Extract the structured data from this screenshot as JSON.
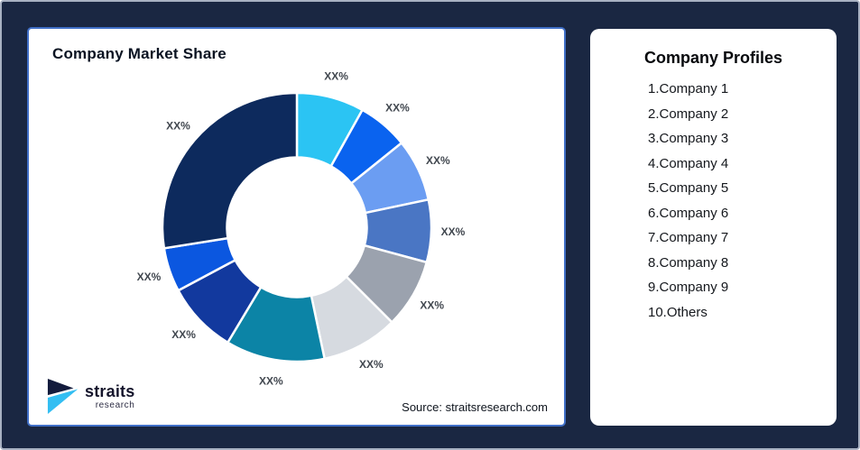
{
  "page": {
    "background_color": "#1A2742",
    "outer_border_color": "#A8B1C2"
  },
  "chart_panel": {
    "title": "Company Market Share",
    "source_text": "Source: straitsresearch.com",
    "border_color": "#4170C8",
    "logo": {
      "name": "straits",
      "sub": "research",
      "mark_top_color": "#131B3C",
      "mark_bottom_color": "#33BEF2"
    }
  },
  "profiles_panel": {
    "title": "Company Profiles",
    "items": [
      "1.Company 1",
      "2.Company 2",
      "3.Company 3",
      "4.Company 4",
      "5.Company 5",
      "6.Company 6",
      "7.Company 7",
      "8.Company 8",
      "9.Company 9",
      "10.Others"
    ]
  },
  "chart_data": {
    "type": "pie",
    "donut": true,
    "title": "Company Market Share",
    "legend_position": "none",
    "start_angle_deg": 0,
    "direction": "clockwise",
    "inner_radius_ratio": 0.52,
    "series_names": [
      "Company 1",
      "Company 2",
      "Company 3",
      "Company 4",
      "Company 5",
      "Company 6",
      "Company 7",
      "Company 8",
      "Company 9",
      "Others"
    ],
    "values": [
      8.1,
      6.1,
      7.5,
      7.5,
      8.3,
      9.2,
      11.9,
      8.6,
      5.3,
      27.5
    ],
    "labels": [
      "XX%",
      "XX%",
      "XX%",
      "XX%",
      "XX%",
      "XX%",
      "XX%",
      "XX%",
      "XX%",
      "XX%"
    ],
    "colors": [
      "#2BC4F3",
      "#0A63EF",
      "#6B9DF2",
      "#4A76C4",
      "#9BA2AE",
      "#D6DAE0",
      "#0C84A6",
      "#12399E",
      "#0B57E0",
      "#0D2A5D"
    ],
    "slice_gap_color": "#FFFFFF",
    "value_label_color": "#41474F"
  }
}
